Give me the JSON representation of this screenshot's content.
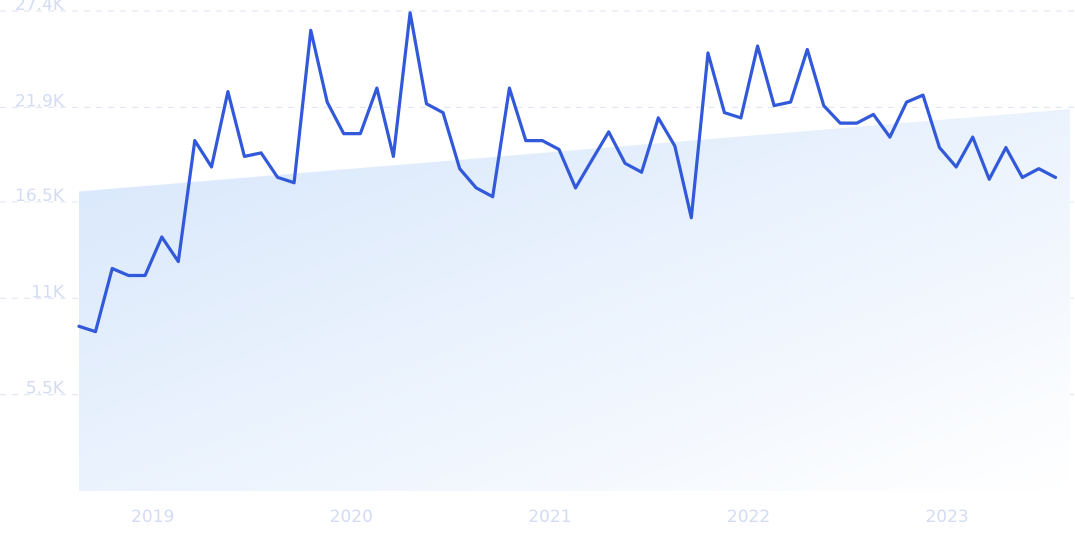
{
  "chart_data": {
    "type": "line",
    "title": "",
    "xlabel": "",
    "ylabel": "",
    "yticks": [
      "27.4K",
      "21.9K",
      "16.5K",
      "11K",
      "5.5K"
    ],
    "ytick_values": [
      27400,
      21900,
      16500,
      11000,
      5500
    ],
    "xticks": [
      "2019",
      "2020",
      "2021",
      "2022",
      "2023"
    ],
    "xtick_values": [
      2019.0,
      2020.0,
      2021.0,
      2022.0,
      2023.0
    ],
    "ylim": [
      0,
      27400
    ],
    "xlim": [
      2018.8,
      2023.79
    ],
    "grid": true,
    "colors": {
      "line": "#3159d9",
      "trend_fill": "#dce9fb",
      "grid": "#e3e8f3",
      "tick_text": "#d3dcf4"
    },
    "trend": {
      "x": [
        2018.8,
        2023.79
      ],
      "y": [
        17100,
        21800
      ]
    },
    "series": [
      {
        "x": [
          2018.8,
          2018.883,
          2018.967,
          2019.05,
          2019.133,
          2019.217,
          2019.3,
          2019.383,
          2019.467,
          2019.55,
          2019.633,
          2019.717,
          2019.8,
          2019.883,
          2019.967,
          2020.05,
          2020.133,
          2020.217,
          2020.3,
          2020.383,
          2020.467,
          2020.55,
          2020.633,
          2020.717,
          2020.8,
          2020.883,
          2020.967,
          2021.05,
          2021.133,
          2021.217,
          2021.3,
          2021.383,
          2021.467,
          2021.55,
          2021.633,
          2021.717,
          2021.8,
          2021.883,
          2021.967,
          2022.05,
          2022.133,
          2022.217,
          2022.3,
          2022.383,
          2022.467,
          2022.55,
          2022.633,
          2022.717,
          2022.8,
          2022.883,
          2022.967,
          2023.05,
          2023.133,
          2023.217,
          2023.3,
          2023.383,
          2023.467,
          2023.55,
          2023.633,
          2023.717,
          2023.79
        ],
        "y": [
          9400,
          9100,
          12700,
          12300,
          12300,
          14500,
          13100,
          20000,
          18500,
          22800,
          19100,
          19300,
          17900,
          17600,
          26300,
          22200,
          20400,
          20400,
          23000,
          19100,
          27300,
          22100,
          21600,
          18400,
          17300,
          16800,
          23000,
          20000,
          20000,
          19500,
          17300,
          18900,
          20500,
          18700,
          18200,
          21300,
          19700,
          15600,
          25000,
          21600,
          21300,
          25400,
          22000,
          22200,
          25200,
          22000,
          21000,
          21000,
          21500,
          20200,
          22200,
          22600,
          19600,
          18500,
          20200,
          17800,
          19600,
          17900,
          18400,
          17900,
          null
        ]
      }
    ]
  }
}
